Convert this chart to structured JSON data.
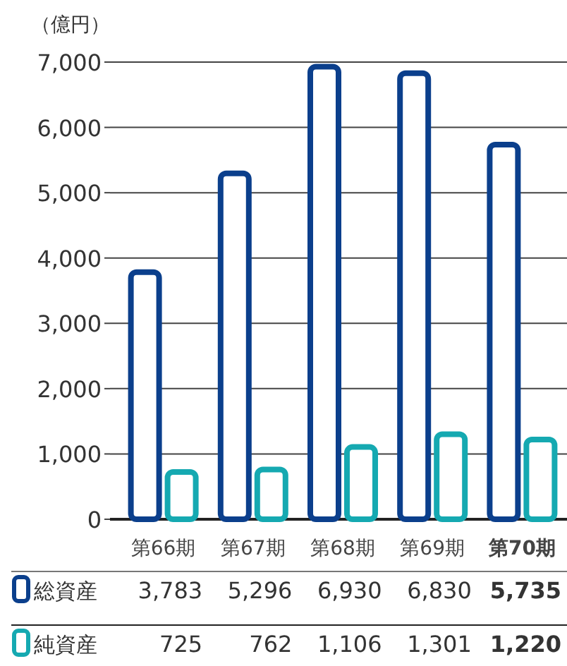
{
  "chart_data": {
    "type": "bar",
    "ylabel": "（億円）",
    "categories": [
      "第66期",
      "第67期",
      "第68期",
      "第69期",
      "第70期"
    ],
    "series": [
      {
        "name": "総資産",
        "color": "#0b3f8c",
        "values": [
          3783,
          5296,
          6930,
          6830,
          5735
        ],
        "value_labels": [
          "3,783",
          "5,296",
          "6,930",
          "6,830",
          "5,735"
        ]
      },
      {
        "name": "純資産",
        "color": "#15a9b1",
        "values": [
          725,
          762,
          1106,
          1301,
          1220
        ],
        "value_labels": [
          "725",
          "762",
          "1,106",
          "1,301",
          "1,220"
        ]
      }
    ],
    "ylim": [
      0,
      7000
    ],
    "yticks": [
      0,
      {
        "value": 1000,
        "label": "1,000"
      },
      {
        "value": 2000,
        "label": "2,000"
      },
      {
        "value": 3000,
        "label": "3,000"
      },
      {
        "value": 4000,
        "label": "4,000"
      },
      {
        "value": 5000,
        "label": "5,000"
      },
      {
        "value": 6000,
        "label": "6,000"
      },
      {
        "value": 7000,
        "label": "7,000"
      }
    ],
    "grid": "y",
    "legend": "bottom"
  }
}
